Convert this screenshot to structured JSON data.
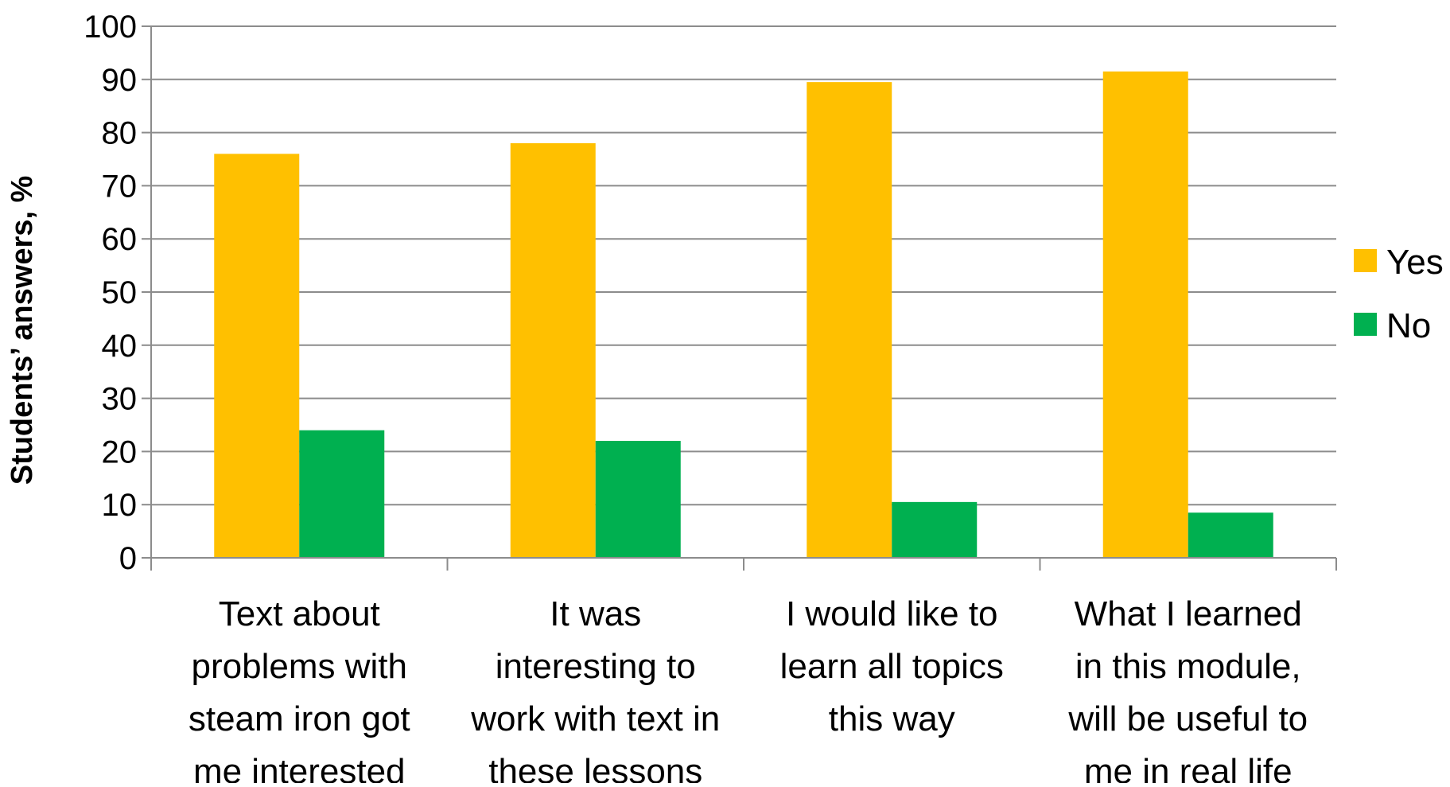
{
  "chart_data": {
    "type": "bar",
    "title": "",
    "xlabel": "",
    "ylabel": "Students’ answers, %",
    "ylim": [
      0,
      100
    ],
    "yticks": [
      0,
      10,
      20,
      30,
      40,
      50,
      60,
      70,
      80,
      90,
      100
    ],
    "grid": true,
    "legend_position": "right",
    "categories": [
      [
        "Text about",
        "problems with",
        "steam iron got",
        "me interested"
      ],
      [
        "It was",
        "interesting to",
        "work with text in",
        "these lessons"
      ],
      [
        "I would like to",
        "learn all topics",
        "this way"
      ],
      [
        "What I learned",
        "in this module,",
        "will be useful to",
        "me in real life"
      ]
    ],
    "series": [
      {
        "name": "Yes",
        "color": "#FFC000",
        "values": [
          76,
          78,
          89.5,
          91.5
        ]
      },
      {
        "name": "No",
        "color": "#00B050",
        "values": [
          24,
          22,
          10.5,
          8.5
        ]
      }
    ]
  }
}
